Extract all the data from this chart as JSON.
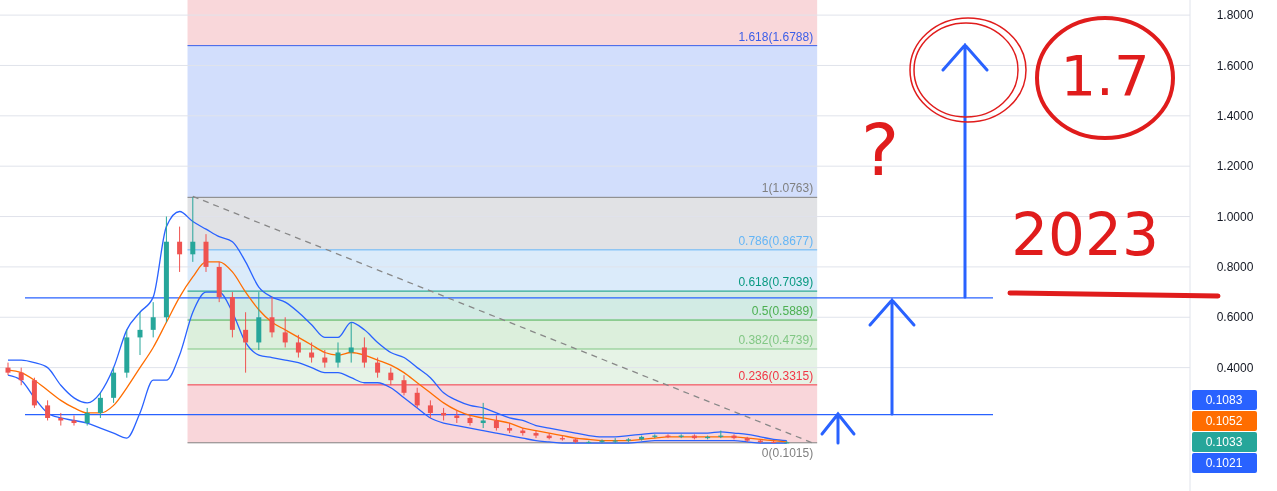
{
  "chart_data": {
    "type": "candlestick",
    "categories": [
      null,
      null,
      null,
      null,
      null,
      null,
      null,
      null,
      null,
      null,
      null,
      null,
      null,
      null,
      null,
      null,
      null,
      null,
      null,
      null,
      null,
      null,
      null,
      null,
      null,
      null,
      null,
      null,
      null,
      null,
      null,
      null,
      null,
      null,
      null,
      null,
      null,
      null,
      null,
      null,
      null,
      null,
      null,
      null,
      null,
      null,
      null,
      null,
      null,
      null,
      null,
      null,
      null,
      null,
      null,
      null,
      null,
      null,
      null,
      null,
      null,
      null,
      null,
      null,
      null,
      null,
      null,
      null,
      null,
      null,
      null,
      null,
      null,
      null,
      null,
      null,
      null,
      null,
      null,
      null,
      null,
      null,
      null,
      null,
      null,
      null,
      null,
      null,
      null,
      null
    ],
    "ohlc": [
      [
        0.4,
        0.42,
        0.37,
        0.38
      ],
      [
        0.38,
        0.4,
        0.33,
        0.35
      ],
      [
        0.35,
        0.36,
        0.24,
        0.25
      ],
      [
        0.25,
        0.27,
        0.19,
        0.2
      ],
      [
        0.2,
        0.22,
        0.17,
        0.19
      ],
      [
        0.19,
        0.21,
        0.17,
        0.18
      ],
      [
        0.18,
        0.24,
        0.17,
        0.22
      ],
      [
        0.22,
        0.3,
        0.2,
        0.28
      ],
      [
        0.28,
        0.4,
        0.26,
        0.38
      ],
      [
        0.38,
        0.55,
        0.36,
        0.52
      ],
      [
        0.52,
        0.62,
        0.45,
        0.55
      ],
      [
        0.55,
        0.66,
        0.52,
        0.6
      ],
      [
        0.6,
        1.0,
        0.58,
        0.9
      ],
      [
        0.9,
        0.96,
        0.78,
        0.85
      ],
      [
        0.85,
        1.0763,
        0.82,
        0.9
      ],
      [
        0.9,
        0.93,
        0.78,
        0.8
      ],
      [
        0.8,
        0.82,
        0.66,
        0.68
      ],
      [
        0.68,
        0.7,
        0.52,
        0.55
      ],
      [
        0.55,
        0.62,
        0.38,
        0.5
      ],
      [
        0.5,
        0.7,
        0.47,
        0.6
      ],
      [
        0.6,
        0.68,
        0.52,
        0.54
      ],
      [
        0.54,
        0.6,
        0.48,
        0.5
      ],
      [
        0.5,
        0.53,
        0.44,
        0.46
      ],
      [
        0.46,
        0.5,
        0.42,
        0.44
      ],
      [
        0.44,
        0.47,
        0.4,
        0.42
      ],
      [
        0.42,
        0.5,
        0.4,
        0.46
      ],
      [
        0.46,
        0.58,
        0.42,
        0.48
      ],
      [
        0.48,
        0.52,
        0.4,
        0.42
      ],
      [
        0.42,
        0.44,
        0.36,
        0.38
      ],
      [
        0.38,
        0.4,
        0.33,
        0.35
      ],
      [
        0.35,
        0.37,
        0.29,
        0.3
      ],
      [
        0.3,
        0.32,
        0.24,
        0.25
      ],
      [
        0.25,
        0.27,
        0.2,
        0.22
      ],
      [
        0.22,
        0.24,
        0.19,
        0.21
      ],
      [
        0.21,
        0.23,
        0.18,
        0.2
      ],
      [
        0.2,
        0.21,
        0.17,
        0.18
      ],
      [
        0.18,
        0.26,
        0.16,
        0.19
      ],
      [
        0.19,
        0.21,
        0.15,
        0.16
      ],
      [
        0.16,
        0.18,
        0.14,
        0.15
      ],
      [
        0.15,
        0.16,
        0.13,
        0.14
      ],
      [
        0.14,
        0.15,
        0.12,
        0.13
      ],
      [
        0.13,
        0.14,
        0.115,
        0.12
      ],
      [
        0.12,
        0.13,
        0.11,
        0.115
      ],
      [
        0.115,
        0.12,
        0.1,
        0.105
      ],
      [
        0.105,
        0.11,
        0.1,
        0.105
      ],
      [
        0.105,
        0.115,
        0.1,
        0.11
      ],
      [
        0.11,
        0.12,
        0.1,
        0.11
      ],
      [
        0.11,
        0.12,
        0.105,
        0.115
      ],
      [
        0.115,
        0.13,
        0.11,
        0.125
      ],
      [
        0.125,
        0.135,
        0.12,
        0.13
      ],
      [
        0.13,
        0.135,
        0.12,
        0.125
      ],
      [
        0.125,
        0.135,
        0.12,
        0.13
      ],
      [
        0.13,
        0.135,
        0.115,
        0.12
      ],
      [
        0.12,
        0.13,
        0.115,
        0.125
      ],
      [
        0.125,
        0.15,
        0.12,
        0.13
      ],
      [
        0.13,
        0.135,
        0.115,
        0.12
      ],
      [
        0.12,
        0.125,
        0.105,
        0.11
      ],
      [
        0.11,
        0.115,
        0.1,
        0.105
      ],
      [
        0.105,
        0.11,
        0.1,
        0.102
      ],
      [
        0.102,
        0.108,
        0.1,
        0.103
      ],
      null,
      null,
      null,
      null,
      null,
      null,
      null,
      null,
      null,
      null,
      null,
      null,
      null,
      null,
      null,
      null,
      null,
      null,
      null,
      null,
      null,
      null,
      null,
      null,
      null,
      null,
      null,
      null,
      null,
      null
    ],
    "series": [
      {
        "type": "line",
        "color": "#2962ff",
        "values": [
          0.43,
          0.43,
          0.42,
          0.4,
          0.33,
          0.28,
          0.26,
          0.3,
          0.4,
          0.55,
          0.62,
          0.68,
          0.96,
          1.02,
          0.98,
          0.95,
          0.92,
          0.9,
          0.82,
          0.72,
          0.68,
          0.66,
          0.62,
          0.57,
          0.52,
          0.52,
          0.58,
          0.55,
          0.5,
          0.46,
          0.44,
          0.4,
          0.36,
          0.3,
          0.27,
          0.25,
          0.24,
          0.22,
          0.2,
          0.19,
          0.17,
          0.16,
          0.15,
          0.14,
          0.13,
          0.125,
          0.125,
          0.13,
          0.135,
          0.14,
          0.14,
          0.14,
          0.14,
          0.14,
          0.145,
          0.14,
          0.135,
          0.125,
          0.115,
          0.11,
          null,
          null,
          null,
          null,
          null,
          null,
          null,
          null,
          null,
          null,
          null,
          null,
          null,
          null,
          null,
          null,
          null,
          null,
          null,
          null,
          null,
          null,
          null,
          null,
          null,
          null,
          null,
          null,
          null,
          null
        ]
      },
      {
        "type": "line",
        "color": "#2962ff",
        "values": [
          0.37,
          0.35,
          0.28,
          0.22,
          0.2,
          0.19,
          0.18,
          0.16,
          0.14,
          0.12,
          0.22,
          0.35,
          0.35,
          0.45,
          0.62,
          0.7,
          0.7,
          0.62,
          0.5,
          0.45,
          0.44,
          0.43,
          0.42,
          0.4,
          0.38,
          0.38,
          0.36,
          0.34,
          0.34,
          0.32,
          0.28,
          0.24,
          0.2,
          0.18,
          0.17,
          0.16,
          0.15,
          0.14,
          0.13,
          0.12,
          0.11,
          0.105,
          0.1,
          0.1,
          0.1,
          0.1,
          0.1,
          0.1,
          0.105,
          0.11,
          0.11,
          0.11,
          0.11,
          0.11,
          0.11,
          0.11,
          0.105,
          0.1,
          0.1,
          0.1,
          null,
          null,
          null,
          null,
          null,
          null,
          null,
          null,
          null,
          null,
          null,
          null,
          null,
          null,
          null,
          null,
          null,
          null,
          null,
          null,
          null,
          null,
          null,
          null,
          null,
          null,
          null,
          null,
          null,
          null
        ]
      },
      {
        "type": "line",
        "color": "#ff6d00",
        "values": [
          0.39,
          0.38,
          0.35,
          0.31,
          0.27,
          0.24,
          0.22,
          0.22,
          0.25,
          0.32,
          0.4,
          0.48,
          0.58,
          0.68,
          0.76,
          0.82,
          0.82,
          0.78,
          0.7,
          0.63,
          0.58,
          0.55,
          0.52,
          0.49,
          0.46,
          0.45,
          0.46,
          0.45,
          0.43,
          0.41,
          0.38,
          0.34,
          0.3,
          0.26,
          0.23,
          0.21,
          0.2,
          0.19,
          0.18,
          0.16,
          0.15,
          0.14,
          0.13,
          0.12,
          0.115,
          0.11,
          0.11,
          0.11,
          0.115,
          0.12,
          0.125,
          0.125,
          0.125,
          0.125,
          0.125,
          0.125,
          0.12,
          0.115,
          0.11,
          0.105,
          null,
          null,
          null,
          null,
          null,
          null,
          null,
          null,
          null,
          null,
          null,
          null,
          null,
          null,
          null,
          null,
          null,
          null,
          null,
          null,
          null,
          null,
          null,
          null,
          null,
          null,
          null,
          null,
          null,
          null
        ]
      },
      {
        "type": "line",
        "color": "#888888",
        "line_style": "dashed",
        "values": [
          null,
          null,
          null,
          null,
          null,
          null,
          null,
          null,
          null,
          null,
          null,
          null,
          null,
          null,
          1.08,
          null,
          null,
          null,
          null,
          null,
          null,
          null,
          null,
          null,
          null,
          null,
          null,
          null,
          null,
          null,
          null,
          null,
          null,
          null,
          null,
          null,
          null,
          null,
          null,
          null,
          null,
          null,
          null,
          null,
          null,
          null,
          null,
          null,
          null,
          null,
          null,
          null,
          null,
          null,
          null,
          null,
          null,
          null,
          null,
          null,
          null,
          0.1,
          null,
          null,
          null,
          null,
          null,
          null,
          null,
          null,
          null,
          null,
          null,
          null,
          null,
          null,
          null,
          null,
          null,
          null,
          null,
          null,
          null,
          null,
          null,
          null,
          null,
          null,
          null,
          null
        ]
      }
    ],
    "ylim": [
      -0.09,
      1.86
    ],
    "yticks": [
      {
        "value": 0.4,
        "label": "0.4000"
      },
      {
        "value": 0.6,
        "label": "0.6000"
      },
      {
        "value": 0.8,
        "label": "0.8000"
      },
      {
        "value": 1.0,
        "label": "1.0000"
      },
      {
        "value": 1.2,
        "label": "1.2000"
      },
      {
        "value": 1.4,
        "label": "1.4000"
      },
      {
        "value": 1.6,
        "label": "1.6000"
      },
      {
        "value": 1.8,
        "label": "1.8000"
      }
    ],
    "grid": "y",
    "bands": [
      {
        "axis": "y",
        "from": 1.6788,
        "to": 1.86,
        "color": "#f9d7da"
      },
      {
        "axis": "y",
        "from": 1.0763,
        "to": 1.6788,
        "color": "#d2defc"
      },
      {
        "axis": "y",
        "from": 0.8677,
        "to": 1.0763,
        "color": "#e1e2e5"
      },
      {
        "axis": "y",
        "from": 0.7039,
        "to": 0.8677,
        "color": "#dbebfa"
      },
      {
        "axis": "y",
        "from": 0.5889,
        "to": 0.7039,
        "color": "#d2ebe4"
      },
      {
        "axis": "y",
        "from": 0.4739,
        "to": 0.5889,
        "color": "#dcefdc"
      },
      {
        "axis": "y",
        "from": 0.3315,
        "to": 0.4739,
        "color": "#e6f3e6"
      },
      {
        "axis": "y",
        "from": 0.1015,
        "to": 0.3315,
        "color": "#f9d6da"
      }
    ],
    "ref_lines": [
      {
        "axis": "y",
        "value": 1.6788,
        "label": "1.618(1.6788)",
        "color": "#3b5ee8"
      },
      {
        "axis": "y",
        "value": 1.0763,
        "label": "1(1.0763)",
        "color": "#808080"
      },
      {
        "axis": "y",
        "value": 0.8677,
        "label": "0.786(0.8677)",
        "color": "#64b5f6"
      },
      {
        "axis": "y",
        "value": 0.7039,
        "label": "0.618(0.7039)",
        "color": "#089981"
      },
      {
        "axis": "y",
        "value": 0.5889,
        "label": "0.5(0.5889)",
        "color": "#4caf50"
      },
      {
        "axis": "y",
        "value": 0.4739,
        "label": "0.382(0.4739)",
        "color": "#81c784"
      },
      {
        "axis": "y",
        "value": 0.3315,
        "label": "0.236(0.3315)",
        "color": "#f23645"
      },
      {
        "axis": "y",
        "value": 0.1015,
        "label": "0(0.1015)",
        "color": "#808080"
      },
      {
        "axis": "y",
        "value": 0.677,
        "color": "#2962ff"
      },
      {
        "axis": "y",
        "value": 0.213,
        "color": "#2962ff"
      }
    ],
    "annotations": [
      "0.1083",
      "0.1052",
      "0.1033",
      "0.1021",
      "?",
      "1.7",
      "2023"
    ]
  }
}
